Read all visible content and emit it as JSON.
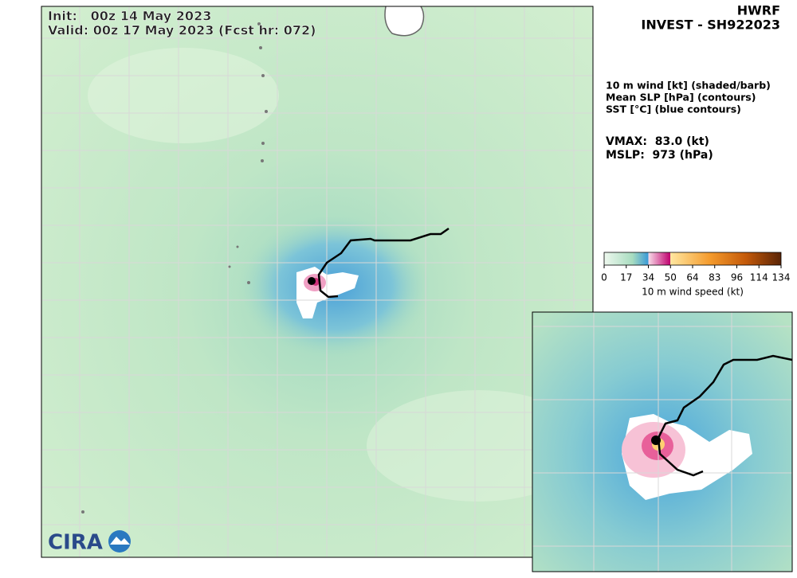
{
  "header": {
    "init": "Init:   00z 14 May 2023",
    "valid": "Valid: 00z 17 May 2023 (Fcst hr: 072)",
    "model": "HWRF",
    "storm": "INVEST - SH922023"
  },
  "legend": [
    "10 m wind [kt] (shaded/barb)",
    "Mean SLP [hPa] (contours)",
    "SST [°C] (blue contours)"
  ],
  "stats": {
    "vmax": "VMAX:  83.0 (kt)",
    "mslp": "MSLP:  973 (hPa)"
  },
  "colorbar": {
    "ticks": [
      0,
      17,
      34,
      50,
      64,
      83,
      96,
      114,
      134
    ],
    "label": "10 m wind speed (kt)"
  },
  "logo": "CIRA"
}
